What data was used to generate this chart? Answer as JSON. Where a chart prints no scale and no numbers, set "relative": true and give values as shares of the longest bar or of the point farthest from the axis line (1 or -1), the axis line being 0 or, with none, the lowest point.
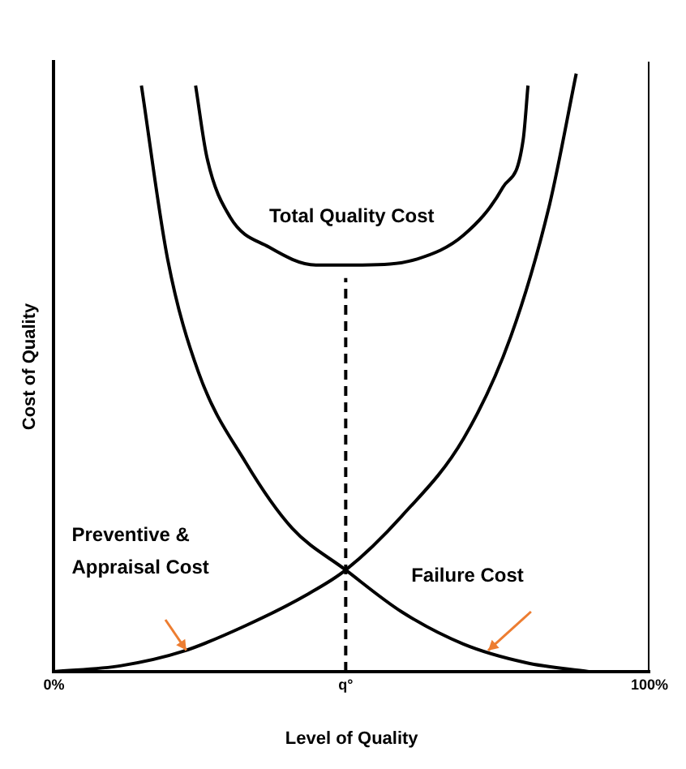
{
  "chart_data": {
    "type": "line",
    "relative": true,
    "xlabel": "Level of Quality",
    "ylabel": "Cost of Quality",
    "xlim": [
      0,
      100
    ],
    "xticks": [
      {
        "value": 0,
        "label": "0%"
      },
      {
        "value": 49,
        "label": "q°"
      },
      {
        "value": 100,
        "label": "100%"
      }
    ],
    "grid": false,
    "legend": false,
    "marker": "none",
    "line_style": "solid",
    "ref_lines": [
      {
        "axis": "x",
        "value": 49,
        "line_style": "dashed",
        "color": "#000000"
      }
    ],
    "series": [
      {
        "name": "Total Quality Cost",
        "color": "#000000",
        "x": [
          23.8,
          25.7,
          29.6,
          36.1,
          44,
          51.8,
          61,
          68.8,
          75.4,
          78.8,
          79.6
        ],
        "values": [
          0.98,
          0.86,
          0.76,
          0.71,
          0.68,
          0.68,
          0.69,
          0.73,
          0.81,
          0.89,
          0.98
        ]
      },
      {
        "name": "Preventive & Appraisal Cost",
        "color": "#000000",
        "x": [
          0,
          11.3,
          21.7,
          32.2,
          42.7,
          49,
          58.4,
          68.8,
          76.7,
          83.2,
          87.7
        ],
        "values": [
          0,
          0.01,
          0.034,
          0.077,
          0.13,
          0.17,
          0.26,
          0.39,
          0.56,
          0.78,
          1
        ]
      },
      {
        "name": "Failure Cost",
        "color": "#000000",
        "x": [
          14.7,
          19.1,
          24.3,
          32.2,
          40,
          49,
          58.4,
          68.8,
          79.3,
          89.8
        ],
        "values": [
          0.98,
          0.69,
          0.5,
          0.35,
          0.24,
          0.17,
          0.1,
          0.046,
          0.015,
          0
        ]
      }
    ]
  }
}
